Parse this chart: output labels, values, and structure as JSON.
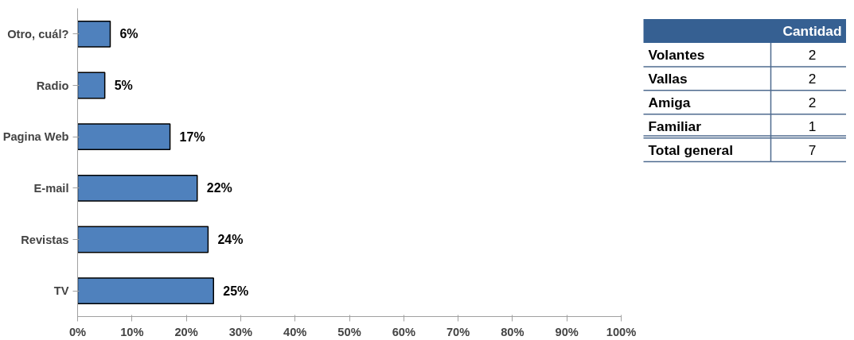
{
  "chart_data": [
    {
      "type": "bar",
      "orientation": "horizontal",
      "categories": [
        "Otro, cuál?",
        "Radio",
        "Pagina Web",
        "E-mail",
        "Revistas",
        "TV"
      ],
      "values": [
        6,
        5,
        17,
        22,
        24,
        25
      ],
      "color": "#4f81bd",
      "data_labels": true,
      "value_labels": [
        "6%",
        "5%",
        "17%",
        "22%",
        "24%",
        "25%"
      ],
      "xlim": [
        0,
        100
      ],
      "xticks": [
        {
          "value": 0,
          "label": "0%"
        },
        {
          "value": 10,
          "label": "10%"
        },
        {
          "value": 20,
          "label": "20%"
        },
        {
          "value": 30,
          "label": "30%"
        },
        {
          "value": 40,
          "label": "40%"
        },
        {
          "value": 50,
          "label": "50%"
        },
        {
          "value": 60,
          "label": "60%"
        },
        {
          "value": 70,
          "label": "70%"
        },
        {
          "value": 80,
          "label": "80%"
        },
        {
          "value": 90,
          "label": "90%"
        },
        {
          "value": 100,
          "label": "100%"
        }
      ],
      "grid": false
    },
    {
      "type": "other",
      "title": "Cantidad",
      "categories": [
        "Volantes",
        "Vallas",
        "Amiga",
        "Familiar",
        "Total general"
      ],
      "values": [
        2,
        2,
        2,
        1,
        7
      ],
      "data_labels": true
    }
  ]
}
